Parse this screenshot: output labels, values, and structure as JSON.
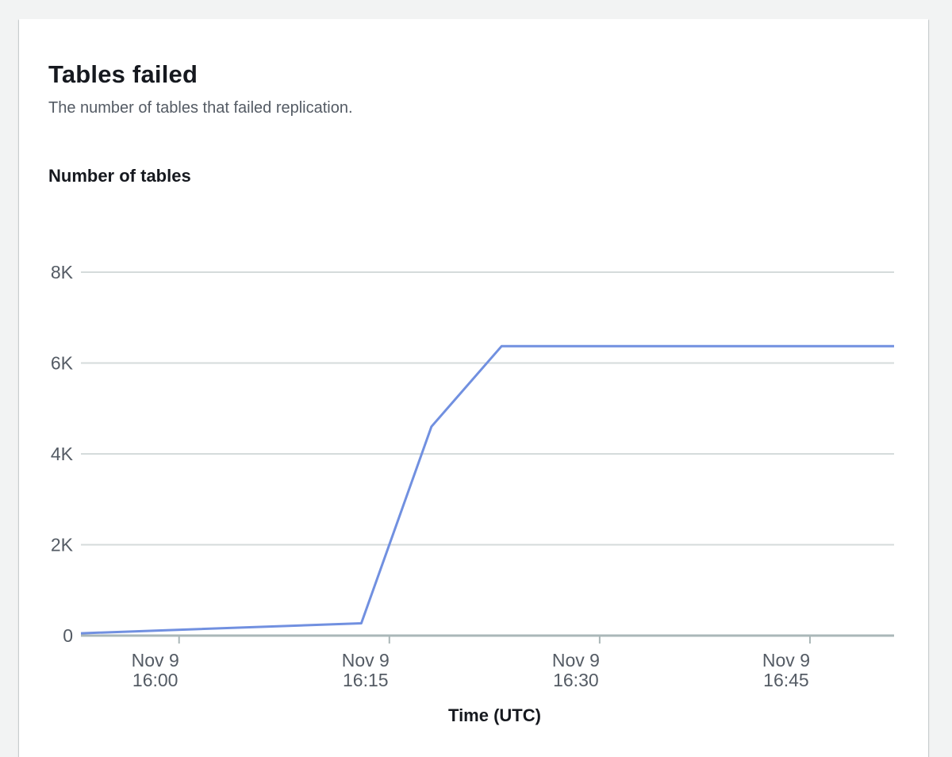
{
  "panel": {
    "title": "Tables failed",
    "description": "The number of tables that failed replication."
  },
  "colors": {
    "line": "#7190e0",
    "grid": "#d5dbdb",
    "axis": "#aab7b8",
    "text": "#545b64"
  },
  "chart_data": {
    "type": "line",
    "title": "Tables failed",
    "ylabel": "Number of tables",
    "xlabel": "Time (UTC)",
    "ylim": [
      0,
      8000
    ],
    "y_ticks": [
      {
        "value": 0,
        "label": "0"
      },
      {
        "value": 2000,
        "label": "2K"
      },
      {
        "value": 4000,
        "label": "4K"
      },
      {
        "value": 6000,
        "label": "6K"
      },
      {
        "value": 8000,
        "label": "8K"
      }
    ],
    "xlim": [
      "Nov 9 15:53",
      "Nov 9 16:51"
    ],
    "x_ticks": [
      {
        "value": "Nov 9 16:00",
        "line1": "Nov 9",
        "line2": "16:00"
      },
      {
        "value": "Nov 9 16:15",
        "line1": "Nov 9",
        "line2": "16:15"
      },
      {
        "value": "Nov 9 16:30",
        "line1": "Nov 9",
        "line2": "16:30"
      },
      {
        "value": "Nov 9 16:45",
        "line1": "Nov 9",
        "line2": "16:45"
      }
    ],
    "grid": true,
    "series": [
      {
        "points": [
          {
            "x": "Nov 9 15:53",
            "y": 50
          },
          {
            "x": "Nov 9 16:13",
            "y": 270
          },
          {
            "x": "Nov 9 16:18",
            "y": 4600
          },
          {
            "x": "Nov 9 16:23",
            "y": 6370
          },
          {
            "x": "Nov 9 16:51",
            "y": 6370
          }
        ]
      }
    ]
  }
}
